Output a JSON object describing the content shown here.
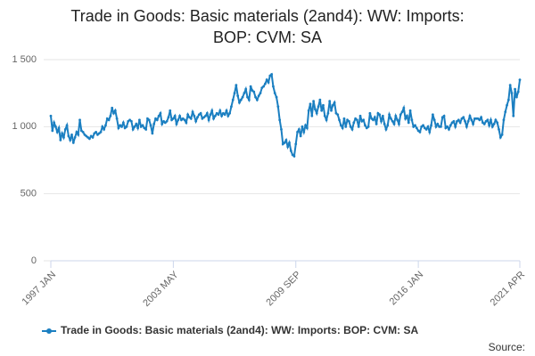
{
  "chart_data": {
    "type": "line",
    "title": "Trade in Goods: Basic materials (2and4): WW: Imports: BOP: CVM: SA",
    "source": "Source:",
    "categories": [
      "1997 JAN",
      null,
      null,
      null,
      null,
      null,
      null,
      null,
      null,
      null,
      null,
      null,
      null,
      null,
      null,
      null,
      null,
      null,
      null,
      null,
      null,
      null,
      null,
      null,
      null,
      null,
      null,
      null,
      null,
      null,
      null,
      null,
      null,
      null,
      null,
      null,
      null,
      null,
      null,
      null,
      null,
      null,
      null,
      null,
      null,
      null,
      null,
      null,
      null,
      null,
      null,
      null,
      null,
      null,
      null,
      null,
      null,
      null,
      null,
      null,
      null,
      null,
      null,
      null,
      null,
      null,
      null,
      null,
      null,
      null,
      null,
      null,
      null,
      null,
      null,
      null,
      "2003 MAY",
      null,
      null,
      null,
      null,
      null,
      null,
      null,
      null,
      null,
      null,
      null,
      null,
      null,
      null,
      null,
      null,
      null,
      null,
      null,
      null,
      null,
      null,
      null,
      null,
      null,
      null,
      null,
      null,
      null,
      null,
      null,
      null,
      null,
      null,
      null,
      null,
      null,
      null,
      null,
      null,
      null,
      null,
      null,
      null,
      null,
      null,
      null,
      null,
      null,
      null,
      null,
      null,
      null,
      null,
      null,
      null,
      null,
      null,
      null,
      null,
      null,
      null,
      null,
      null,
      null,
      null,
      null,
      null,
      null,
      null,
      null,
      null,
      null,
      null,
      null,
      "2009 SEP",
      null,
      null,
      null,
      null,
      null,
      null,
      null,
      null,
      null,
      null,
      null,
      null,
      null,
      null,
      null,
      null,
      null,
      null,
      null,
      null,
      null,
      null,
      null,
      null,
      null,
      null,
      null,
      null,
      null,
      null,
      null,
      null,
      null,
      null,
      null,
      null,
      null,
      null,
      null,
      null,
      null,
      null,
      null,
      null,
      null,
      null,
      null,
      null,
      null,
      null,
      null,
      null,
      null,
      null,
      null,
      null,
      null,
      null,
      null,
      null,
      null,
      null,
      null,
      null,
      null,
      null,
      null,
      null,
      null,
      null,
      null,
      null,
      null,
      null,
      null,
      "2016 JAN",
      null,
      null,
      null,
      null,
      null,
      null,
      null,
      null,
      null,
      null,
      null,
      null,
      null,
      null,
      null,
      null,
      null,
      null,
      null,
      null,
      null,
      null,
      null,
      null,
      null,
      null,
      null,
      null,
      null,
      null,
      null,
      null,
      null,
      null,
      null,
      null,
      null,
      null,
      null,
      null,
      null,
      null,
      null,
      null,
      null,
      null,
      null,
      null,
      null,
      null,
      null,
      null,
      null,
      null,
      null,
      null,
      null,
      null,
      null,
      null,
      null,
      null,
      "2021 APR"
    ],
    "series": [
      {
        "name": "Trade in Goods: Basic materials (2and4): WW: Imports: BOP: CVM: SA",
        "color": "#1b7fc1",
        "values": [
          1080,
          970,
          1030,
          1000,
          960,
          990,
          900,
          950,
          920,
          980,
          1010,
          930,
          900,
          940,
          880,
          920,
          960,
          940,
          1050,
          970,
          960,
          940,
          930,
          920,
          910,
          930,
          920,
          950,
          960,
          940,
          950,
          960,
          1000,
          980,
          1010,
          1060,
          1050,
          1080,
          1140,
          1100,
          1120,
          1060,
          990,
          1010,
          1000,
          1030,
          990,
          1000,
          1040,
          1050,
          1040,
          980,
          1000,
          1020,
          990,
          1050,
          1000,
          1010,
          990,
          980,
          1060,
          1050,
          1010,
          950,
          1020,
          1060,
          1050,
          1080,
          1100,
          1020,
          1040,
          1030,
          1040,
          1070,
          1120,
          1050,
          1060,
          1080,
          1020,
          1050,
          1080,
          1050,
          1060,
          1050,
          1030,
          1090,
          1070,
          1060,
          1110,
          1080,
          1040,
          1070,
          1090,
          1100,
          1060,
          1070,
          1080,
          1100,
          1050,
          1090,
          1120,
          1060,
          1080,
          1100,
          1090,
          1120,
          1080,
          1100,
          1090,
          1120,
          1080,
          1100,
          1150,
          1200,
          1250,
          1310,
          1230,
          1180,
          1200,
          1220,
          1250,
          1280,
          1220,
          1200,
          1300,
          1270,
          1260,
          1220,
          1200,
          1230,
          1250,
          1290,
          1300,
          1320,
          1350,
          1330,
          1380,
          1390,
          1300,
          1250,
          1220,
          1150,
          1050,
          980,
          870,
          880,
          900,
          850,
          880,
          820,
          790,
          780,
          870,
          960,
          980,
          930,
          1000,
          960,
          1010,
          990,
          1120,
          1170,
          1080,
          1190,
          1130,
          1100,
          1150,
          1200,
          1120,
          1160,
          1080,
          1050,
          1100,
          1190,
          1120,
          1160,
          1180,
          1100,
          1090,
          1050,
          1010,
          990,
          1060,
          1000,
          1050,
          1040,
          1000,
          980,
          1030,
          1060,
          1050,
          1000,
          1080,
          1040,
          1050,
          1010,
          990,
          1000,
          1100,
          1060,
          1050,
          1070,
          1020,
          1100,
          1090,
          1040,
          1080,
          1020,
          980,
          1010,
          1090,
          1060,
          1040,
          1020,
          1080,
          1050,
          1020,
          1090,
          1110,
          1140,
          1060,
          1080,
          1030,
          1120,
          1050,
          1000,
          1010,
          990,
          970,
          960,
          1000,
          1010,
          990,
          980,
          1000,
          960,
          1010,
          1090,
          1050,
          1000,
          1020,
          1000,
          1000,
          1070,
          1080,
          990,
          1000,
          980,
          1010,
          1030,
          1040,
          1000,
          1040,
          1050,
          1030,
          1060,
          1070,
          1040,
          1000,
          1040,
          1080,
          1050,
          1020,
          1060,
          1060,
          1060,
          1050,
          1070,
          1030,
          1020,
          1040,
          1050,
          1010,
          1050,
          1000,
          1020,
          1050,
          1030,
          980,
          920,
          940,
          1050,
          1110,
          1160,
          1200,
          1310,
          1250,
          1080,
          1280,
          1220,
          1260,
          1350
        ]
      }
    ],
    "ylim": [
      0,
      1500
    ],
    "yticks": [
      0,
      500,
      {
        "value": 1000,
        "label": "1 000"
      },
      {
        "value": 1500,
        "label": "1 500"
      }
    ],
    "grid": true
  }
}
